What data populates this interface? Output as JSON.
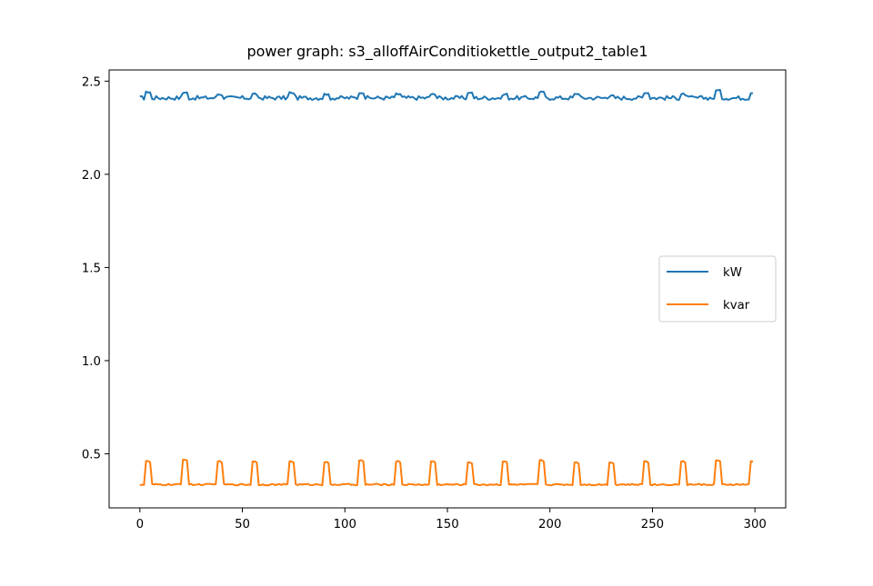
{
  "chart_data": {
    "type": "line",
    "title": "power graph: s3_alloffAirConditiokettle_output2_table1",
    "xlabel": "",
    "ylabel": "",
    "xlim": [
      -15,
      315
    ],
    "ylim": [
      0.21,
      2.56
    ],
    "xticks": [
      0,
      50,
      100,
      150,
      200,
      250,
      300
    ],
    "xtick_labels": [
      "0",
      "50",
      "100",
      "150",
      "200",
      "250",
      "300"
    ],
    "yticks": [
      0.5,
      1.0,
      1.5,
      2.0,
      2.5
    ],
    "ytick_labels": [
      "0.5",
      "1.0",
      "1.5",
      "2.0",
      "2.5"
    ],
    "grid": false,
    "legend_position": "center-right",
    "x_start": 0,
    "x_end": 299,
    "series": [
      {
        "name": "kW",
        "color": "#1f77b4",
        "baseline": 2.41,
        "spikes": [
          {
            "x": 3,
            "value": 2.44
          },
          {
            "x": 21,
            "value": 2.44
          },
          {
            "x": 38,
            "value": 2.43
          },
          {
            "x": 55,
            "value": 2.43
          },
          {
            "x": 73,
            "value": 2.44
          },
          {
            "x": 90,
            "value": 2.43
          },
          {
            "x": 107,
            "value": 2.44
          },
          {
            "x": 125,
            "value": 2.43
          },
          {
            "x": 142,
            "value": 2.43
          },
          {
            "x": 160,
            "value": 2.44
          },
          {
            "x": 177,
            "value": 2.43
          },
          {
            "x": 195,
            "value": 2.44
          },
          {
            "x": 212,
            "value": 2.43
          },
          {
            "x": 229,
            "value": 2.42
          },
          {
            "x": 246,
            "value": 2.44
          },
          {
            "x": 264,
            "value": 2.43
          },
          {
            "x": 281,
            "value": 2.45
          },
          {
            "x": 298,
            "value": 2.44
          }
        ]
      },
      {
        "name": "kvar",
        "color": "#ff7f0e",
        "baseline": 0.335,
        "spikes": [
          {
            "x": 3,
            "value": 0.46
          },
          {
            "x": 21,
            "value": 0.47
          },
          {
            "x": 38,
            "value": 0.46
          },
          {
            "x": 55,
            "value": 0.46
          },
          {
            "x": 73,
            "value": 0.46
          },
          {
            "x": 90,
            "value": 0.455
          },
          {
            "x": 107,
            "value": 0.465
          },
          {
            "x": 125,
            "value": 0.46
          },
          {
            "x": 142,
            "value": 0.46
          },
          {
            "x": 160,
            "value": 0.455
          },
          {
            "x": 177,
            "value": 0.46
          },
          {
            "x": 195,
            "value": 0.465
          },
          {
            "x": 212,
            "value": 0.455
          },
          {
            "x": 229,
            "value": 0.455
          },
          {
            "x": 246,
            "value": 0.46
          },
          {
            "x": 264,
            "value": 0.46
          },
          {
            "x": 281,
            "value": 0.465
          },
          {
            "x": 298,
            "value": 0.46
          }
        ]
      }
    ]
  }
}
